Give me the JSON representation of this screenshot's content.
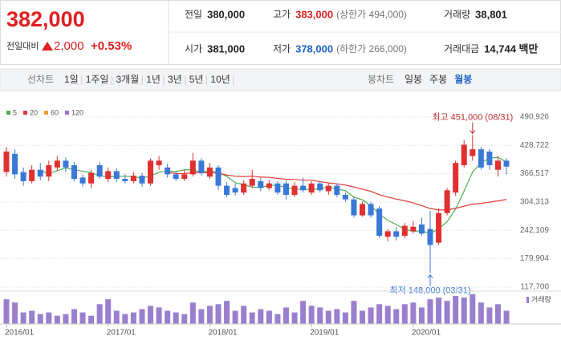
{
  "header": {
    "price": "382,000",
    "change_label": "전일대비",
    "change": "2,000",
    "change_pct": "+0.53%",
    "fields": [
      {
        "label": "전일",
        "value": "380,000"
      },
      {
        "label": "고가",
        "value": "383,000",
        "note": "(상한가 494,000)"
      },
      {
        "label": "거래량",
        "value": "38,801"
      },
      {
        "label": "시가",
        "value": "381,000"
      },
      {
        "label": "저가",
        "value": "378,000",
        "note": "(하한가 266,000)"
      },
      {
        "label": "거래대금",
        "value": "14,744 백만"
      }
    ]
  },
  "toolbar": {
    "line_label": "선차트",
    "line_ranges": [
      "1일",
      "1주일",
      "3개월",
      "1년",
      "3년",
      "5년",
      "10년"
    ],
    "candle_label": "봉차트",
    "candle_ranges": [
      "일봉",
      "주봉",
      "월봉"
    ],
    "active": "월봉"
  },
  "chart_data": {
    "type": "candlestick",
    "legend": [
      {
        "name": "5",
        "color": "#4caf50"
      },
      {
        "name": "20",
        "color": "#e53935"
      },
      {
        "name": "60",
        "color": "#f0a030"
      },
      {
        "name": "120",
        "color": "#9c6fd0"
      }
    ],
    "x": [
      "2016/01",
      null,
      null,
      null,
      null,
      null,
      null,
      null,
      null,
      null,
      null,
      null,
      "2017/01",
      null,
      null,
      null,
      null,
      null,
      null,
      null,
      null,
      null,
      null,
      null,
      "2018/01",
      null,
      null,
      null,
      null,
      null,
      null,
      null,
      null,
      null,
      null,
      null,
      "2019/01",
      null,
      null,
      null,
      null,
      null,
      null,
      null,
      null,
      null,
      null,
      null,
      "2020/01",
      null,
      null,
      null,
      null,
      null,
      null,
      null,
      null,
      null,
      null,
      null
    ],
    "open": [
      370000,
      410000,
      370000,
      350000,
      375000,
      360000,
      380000,
      395000,
      385000,
      358000,
      345000,
      385000,
      355000,
      372000,
      355000,
      350000,
      362000,
      345000,
      385000,
      380000,
      365000,
      355000,
      365000,
      395000,
      360000,
      380000,
      340000,
      335000,
      325000,
      340000,
      350000,
      335000,
      345000,
      345000,
      320000,
      340000,
      325000,
      345000,
      328000,
      340000,
      320000,
      310000,
      275000,
      300000,
      290000,
      228000,
      240000,
      230000,
      240000,
      255000,
      245000,
      215000,
      280000,
      325000,
      385000,
      405000,
      420000,
      415000,
      375000,
      395000
    ],
    "high": [
      425000,
      420000,
      380000,
      385000,
      390000,
      395000,
      405000,
      402000,
      392000,
      365000,
      375000,
      392000,
      380000,
      378000,
      365000,
      370000,
      368000,
      400000,
      405000,
      388000,
      372000,
      375000,
      412000,
      400000,
      390000,
      385000,
      348000,
      345000,
      352000,
      375000,
      358000,
      352000,
      350000,
      352000,
      348000,
      358000,
      350000,
      350000,
      345000,
      345000,
      325000,
      315000,
      305000,
      305000,
      295000,
      245000,
      250000,
      258000,
      262000,
      270000,
      285000,
      290000,
      335000,
      395000,
      440000,
      451000,
      425000,
      420000,
      405000,
      400000
    ],
    "low": [
      360000,
      355000,
      340000,
      345000,
      352000,
      350000,
      372000,
      370000,
      350000,
      338000,
      335000,
      355000,
      348000,
      348000,
      345000,
      345000,
      338000,
      340000,
      375000,
      358000,
      350000,
      350000,
      360000,
      362000,
      355000,
      330000,
      315000,
      318000,
      320000,
      335000,
      328000,
      330000,
      320000,
      310000,
      315000,
      325000,
      320000,
      325000,
      320000,
      315000,
      305000,
      270000,
      272000,
      270000,
      225000,
      218000,
      220000,
      225000,
      235000,
      230000,
      148000,
      210000,
      275000,
      318000,
      380000,
      395000,
      375000,
      375000,
      360000,
      365000
    ],
    "close": [
      415000,
      365000,
      350000,
      375000,
      360000,
      385000,
      395000,
      380000,
      355000,
      345000,
      368000,
      360000,
      372000,
      355000,
      350000,
      362000,
      345000,
      395000,
      395000,
      365000,
      355000,
      365000,
      395000,
      368000,
      380000,
      340000,
      320000,
      325000,
      345000,
      355000,
      335000,
      345000,
      325000,
      320000,
      340000,
      330000,
      345000,
      330000,
      340000,
      320000,
      310000,
      275000,
      300000,
      275000,
      230000,
      240000,
      228000,
      252000,
      250000,
      235000,
      210000,
      280000,
      330000,
      390000,
      430000,
      420000,
      380000,
      385000,
      395000,
      382000
    ],
    "volume": [
      30,
      26,
      14,
      16,
      12,
      14,
      10,
      12,
      18,
      14,
      10,
      24,
      30,
      16,
      12,
      14,
      18,
      22,
      20,
      16,
      14,
      12,
      26,
      18,
      22,
      24,
      28,
      16,
      22,
      14,
      18,
      16,
      12,
      20,
      14,
      28,
      22,
      20,
      16,
      18,
      14,
      28,
      16,
      20,
      24,
      22,
      18,
      24,
      26,
      20,
      30,
      32,
      28,
      34,
      32,
      36,
      26,
      20,
      24,
      16
    ],
    "volume_label": "거래량",
    "ylim": [
      100000,
      510000
    ],
    "yticks": [
      {
        "value": 117700,
        "label": "117,700"
      },
      {
        "value": 179904,
        "label": "179,904"
      },
      {
        "value": 242109,
        "label": "242,109"
      },
      {
        "value": 304313,
        "label": "304,313"
      },
      {
        "value": 366517,
        "label": "366,517"
      },
      {
        "value": 428722,
        "label": "428,722"
      },
      {
        "value": 490926,
        "label": "490,926"
      }
    ],
    "annotations": [
      {
        "text": "최고 451,000 (08/31)",
        "index": 55,
        "value": 451000
      },
      {
        "text": "최저 148,000 (03/31)",
        "index": 50,
        "value": 148000
      }
    ],
    "up_color": "#e03030",
    "down_color": "#3a78d8",
    "volume_color": "#9b7fcf",
    "grid": true
  }
}
